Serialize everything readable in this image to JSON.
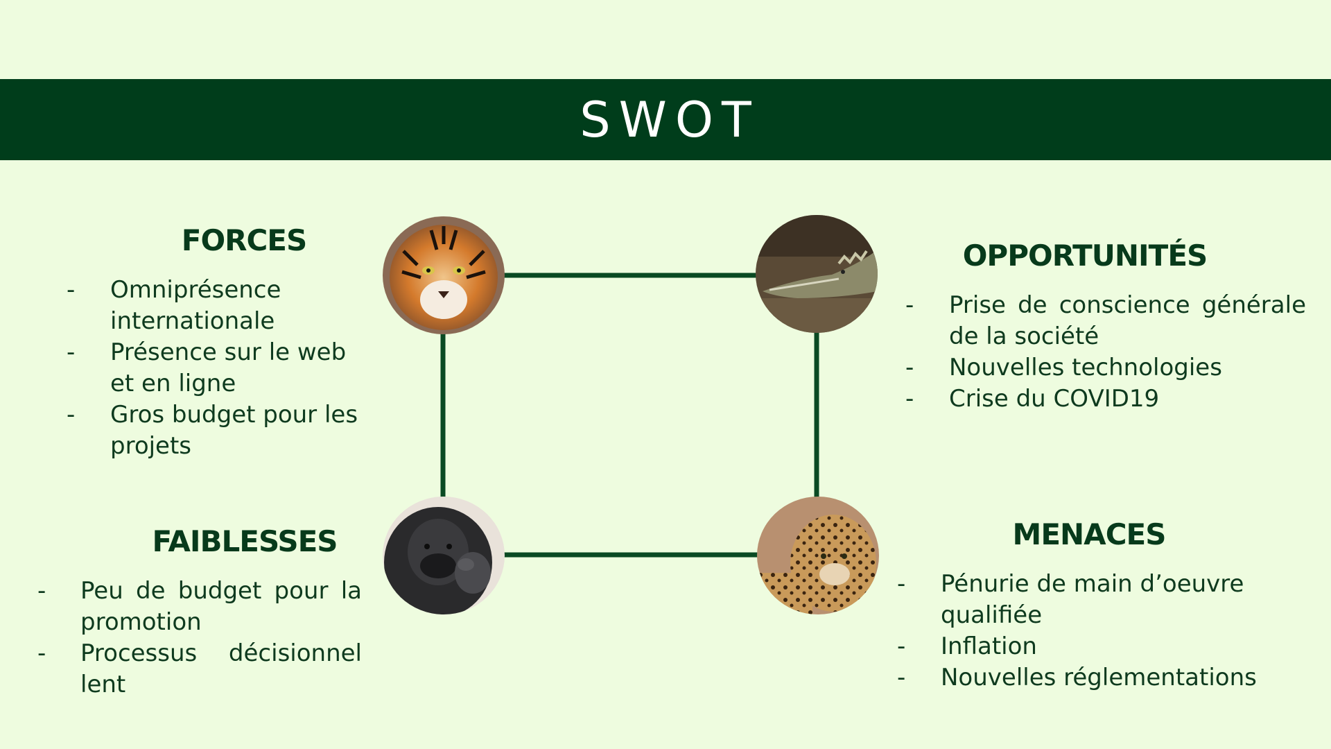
{
  "title": "SWOT",
  "colors": {
    "background": "#eefcdf",
    "banner": "#003d1b",
    "text": "#0b3a1c",
    "connector": "#0a4a23"
  },
  "forces": {
    "heading": "FORCES",
    "icon": "tiger-photo",
    "items": [
      "Omniprésence internationale",
      "Présence sur le web et en ligne",
      "Gros budget pour les projets"
    ]
  },
  "opportunites": {
    "heading": "OPPORTUNITÉS",
    "icon": "crocodile-photo",
    "items": [
      "Prise de conscience générale de la société",
      "Nouvelles technologies",
      "Crise du COVID19"
    ]
  },
  "faiblesses": {
    "heading": "FAIBLESSES",
    "icon": "gorilla-photo",
    "items": [
      "Peu de budget pour la promotion",
      "Processus décisionnel lent"
    ]
  },
  "menaces": {
    "heading": "MENACES",
    "icon": "leopard-photo",
    "items": [
      "Pénurie de main d’oeuvre qualifiée",
      "Inflation",
      "Nouvelles réglementations"
    ]
  }
}
